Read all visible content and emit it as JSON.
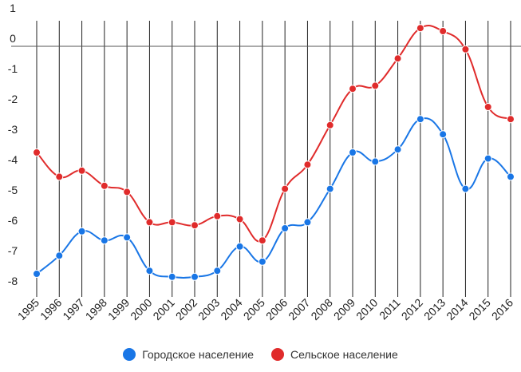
{
  "chart_data": {
    "type": "line",
    "title": "",
    "xlabel": "",
    "ylabel": "",
    "ylim": [
      -8,
      1
    ],
    "yticks": [
      1,
      0,
      -1,
      -2,
      -3,
      -4,
      -5,
      -6,
      -7,
      -8
    ],
    "grid": "vertical",
    "legend_position": "bottom",
    "x": [
      "1995",
      "1996",
      "1997",
      "1998",
      "1999",
      "2000",
      "2001",
      "2002",
      "2003",
      "2004",
      "2005",
      "2006",
      "2007",
      "2008",
      "2009",
      "2010",
      "2011",
      "2012",
      "2013",
      "2014",
      "2015",
      "2016"
    ],
    "series": [
      {
        "name": "Городское население",
        "color": "#1976e6",
        "values": [
          -7.5,
          -6.9,
          -6.1,
          -6.4,
          -6.3,
          -7.4,
          -7.6,
          -7.6,
          -7.4,
          -6.6,
          -7.1,
          -6.0,
          -5.8,
          -4.7,
          -3.5,
          -3.8,
          -3.4,
          -2.4,
          -2.9,
          -4.7,
          -3.7,
          -4.3
        ]
      },
      {
        "name": "Сельское население",
        "color": "#e02b2b",
        "values": [
          -3.5,
          -4.3,
          -4.1,
          -4.6,
          -4.8,
          -5.8,
          -5.8,
          -5.9,
          -5.6,
          -5.7,
          -6.4,
          -4.7,
          -3.9,
          -2.6,
          -1.4,
          -1.3,
          -0.4,
          0.6,
          0.5,
          -0.1,
          -2.0,
          -2.4
        ]
      }
    ]
  }
}
